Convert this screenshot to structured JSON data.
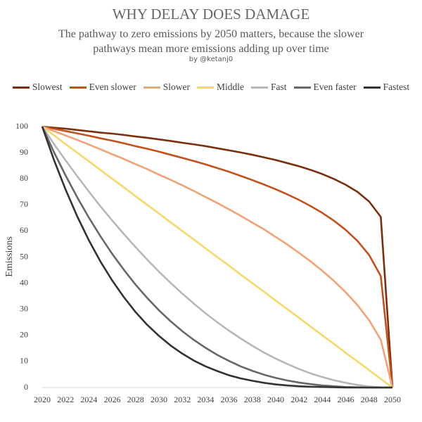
{
  "chart_data": {
    "type": "line",
    "title": "WHY DELAY DOES DAMAGE",
    "subtitle": "The pathway to zero emissions by 2050 matters, because the slower pathways mean more emissions adding up over time",
    "byline": "by @ketanj0",
    "y_label": "Emissions",
    "x": [
      2020,
      2021,
      2022,
      2023,
      2024,
      2025,
      2026,
      2027,
      2028,
      2029,
      2030,
      2031,
      2032,
      2033,
      2034,
      2035,
      2036,
      2037,
      2038,
      2039,
      2040,
      2041,
      2042,
      2043,
      2044,
      2045,
      2046,
      2047,
      2048,
      2049,
      2050
    ],
    "xlim": [
      2020,
      2050
    ],
    "xticks": [
      2020,
      2022,
      2024,
      2026,
      2028,
      2030,
      2032,
      2034,
      2036,
      2038,
      2040,
      2042,
      2044,
      2046,
      2048,
      2050
    ],
    "ylim": [
      0,
      100
    ],
    "yticks": [
      0,
      10,
      20,
      30,
      40,
      50,
      60,
      70,
      80,
      90,
      100
    ],
    "grid": false,
    "legend": "top",
    "series": [
      {
        "name": "Slowest",
        "color": "#7b2f0e",
        "values": [
          100,
          99.6,
          99.2,
          98.7,
          98.2,
          97.7,
          97.3,
          96.8,
          96.2,
          95.7,
          95.1,
          94.5,
          93.8,
          93.2,
          92.5,
          91.7,
          90.9,
          90.1,
          89.2,
          88.2,
          87.2,
          86,
          84.8,
          83.4,
          81.8,
          79.9,
          77.7,
          75,
          71.3,
          65.4,
          0
        ]
      },
      {
        "name": "Even slower",
        "color": "#c4501a",
        "values": [
          100,
          99.2,
          98.3,
          97.4,
          96.5,
          95.5,
          94.6,
          93.6,
          92.5,
          91.5,
          90.4,
          89.2,
          88,
          86.8,
          85.5,
          84.1,
          82.7,
          81.1,
          79.5,
          77.8,
          76,
          74,
          71.9,
          69.5,
          66.9,
          63.9,
          60.4,
          56.2,
          50.8,
          42.7,
          0
        ]
      },
      {
        "name": "Slower",
        "color": "#f2a274",
        "values": [
          100,
          98.3,
          96.6,
          94.9,
          93.1,
          91.3,
          89.4,
          87.6,
          85.6,
          83.7,
          81.6,
          79.6,
          77.5,
          75.3,
          73,
          70.7,
          68.3,
          65.8,
          63.2,
          60.6,
          57.7,
          54.8,
          51.6,
          48.3,
          44.7,
          40.8,
          36.5,
          31.6,
          25.8,
          18.3,
          0
        ]
      },
      {
        "name": "Middle",
        "color": "#f6d86a",
        "values": [
          100,
          96.7,
          93.3,
          90,
          86.7,
          83.3,
          80,
          76.7,
          73.3,
          70,
          66.7,
          63.3,
          60,
          56.7,
          53.3,
          50,
          46.7,
          43.3,
          40,
          36.7,
          33.3,
          30,
          26.7,
          23.3,
          20,
          16.7,
          13.3,
          10,
          6.7,
          3.3,
          0
        ]
      },
      {
        "name": "Fast",
        "color": "#b7b7b7",
        "values": [
          100,
          93.4,
          87.1,
          81,
          75.1,
          69.4,
          64,
          58.8,
          53.8,
          49,
          44.4,
          40.1,
          36,
          32.1,
          28.4,
          25,
          21.8,
          18.8,
          16,
          13.4,
          11.1,
          9,
          7.1,
          5.4,
          4,
          2.8,
          1.8,
          1,
          0.4,
          0.1,
          0
        ]
      },
      {
        "name": "Even faster",
        "color": "#676767",
        "values": [
          100,
          90.3,
          81.3,
          72.9,
          65.1,
          57.9,
          51.2,
          45.1,
          39.4,
          34.3,
          29.6,
          25.4,
          21.6,
          18.2,
          15.2,
          12.5,
          10.2,
          8.1,
          6.4,
          4.9,
          3.7,
          2.7,
          1.9,
          1.3,
          0.8,
          0.5,
          0.2,
          0.1,
          0,
          0,
          0
        ]
      },
      {
        "name": "Fastest",
        "color": "#333333",
        "values": [
          100,
          87.3,
          75.9,
          65.6,
          56.4,
          48.2,
          41,
          34.6,
          28.9,
          24,
          19.8,
          16.1,
          13,
          10.3,
          8.1,
          6.3,
          4.7,
          3.5,
          2.6,
          1.8,
          1.2,
          0.8,
          0.5,
          0.3,
          0.2,
          0.1,
          0,
          0,
          0,
          0,
          0
        ]
      }
    ]
  }
}
